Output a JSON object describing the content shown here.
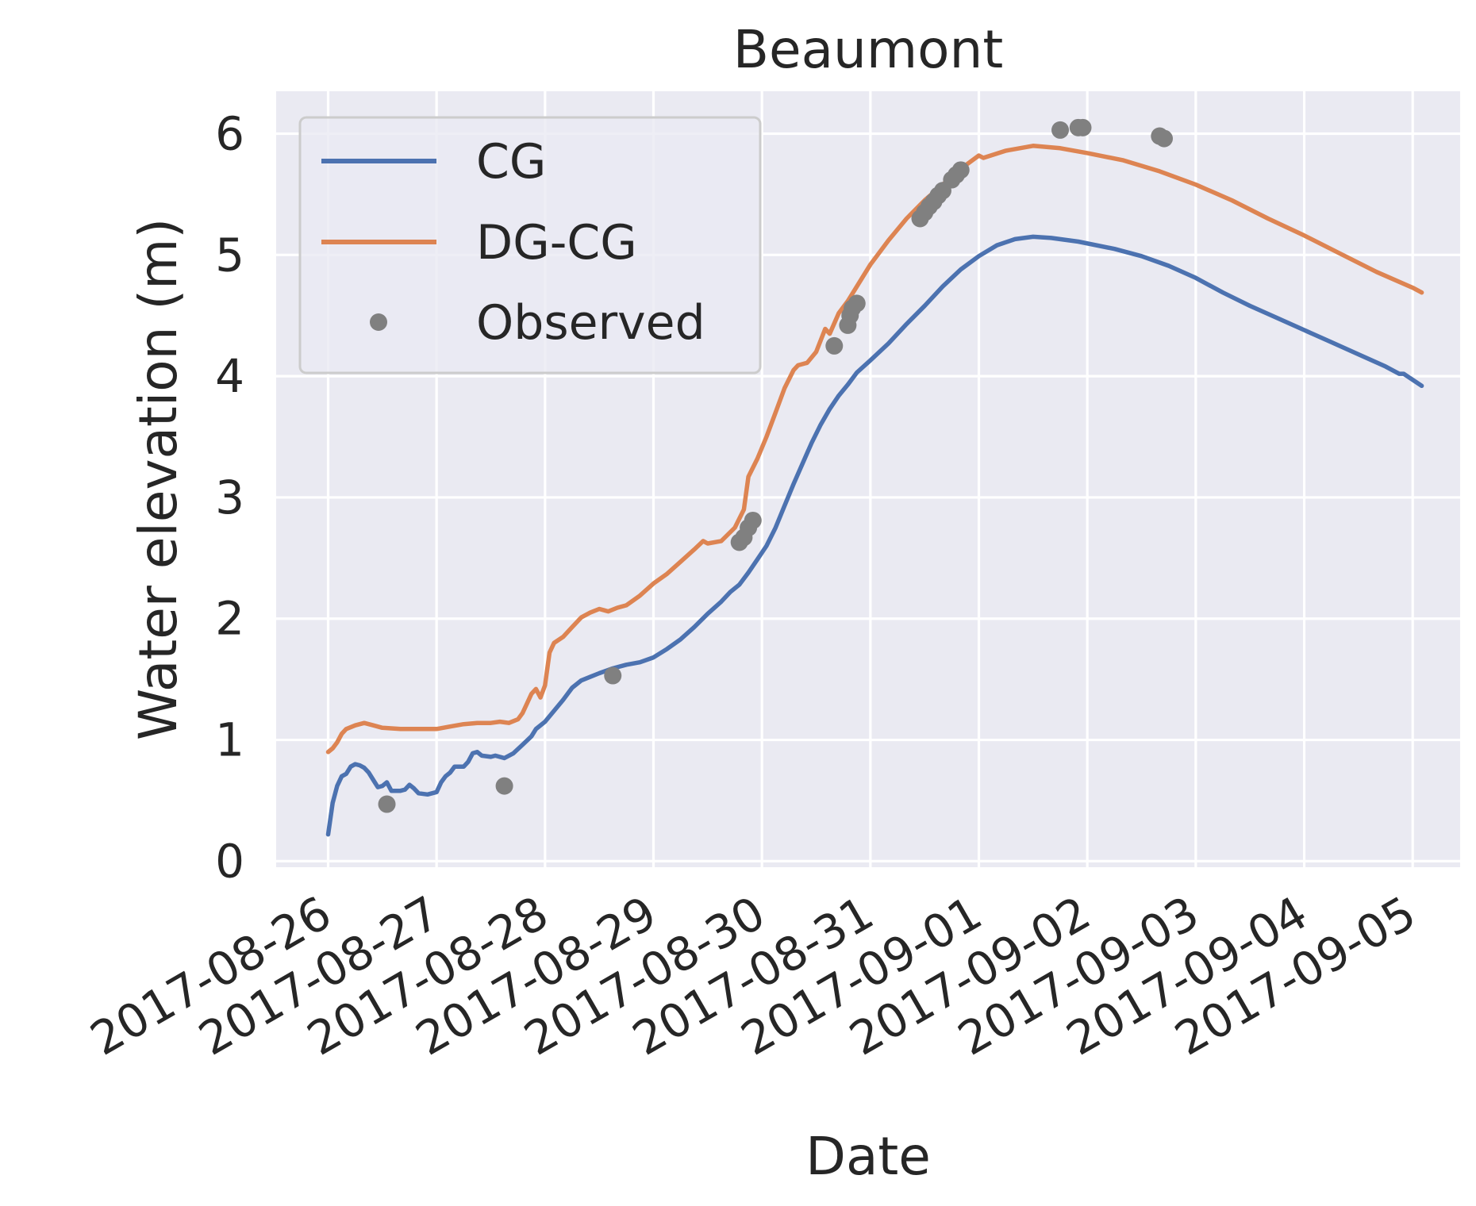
{
  "chart_data": {
    "type": "line",
    "title": "Beaumont",
    "xlabel": "Date",
    "ylabel": "Water elevation (m)",
    "x_ticks": [
      "2017-08-26",
      "2017-08-27",
      "2017-08-28",
      "2017-08-29",
      "2017-08-30",
      "2017-08-31",
      "2017-09-01",
      "2017-09-02",
      "2017-09-03",
      "2017-09-04",
      "2017-09-05"
    ],
    "y_ticks": [
      "0",
      "1",
      "2",
      "3",
      "4",
      "5",
      "6"
    ],
    "xlim": [
      "2017-08-25T12:30",
      "2017-09-05T10:30"
    ],
    "ylim": [
      -0.05,
      6.35
    ],
    "grid": true,
    "legend_position": "upper-left",
    "background_color": "#EAEAF2",
    "grid_color": "#FFFFFF",
    "series": [
      {
        "name": "CG",
        "kind": "line",
        "color": "#4C72B0",
        "points": [
          [
            "2017-08-26T00:00",
            0.22
          ],
          [
            "2017-08-26T01:00",
            0.48
          ],
          [
            "2017-08-26T02:00",
            0.62
          ],
          [
            "2017-08-26T03:00",
            0.7
          ],
          [
            "2017-08-26T04:00",
            0.72
          ],
          [
            "2017-08-26T05:00",
            0.78
          ],
          [
            "2017-08-26T06:00",
            0.8
          ],
          [
            "2017-08-26T07:00",
            0.79
          ],
          [
            "2017-08-26T08:00",
            0.77
          ],
          [
            "2017-08-26T09:00",
            0.73
          ],
          [
            "2017-08-26T10:00",
            0.67
          ],
          [
            "2017-08-26T11:00",
            0.61
          ],
          [
            "2017-08-26T12:00",
            0.62
          ],
          [
            "2017-08-26T13:00",
            0.65
          ],
          [
            "2017-08-26T14:00",
            0.58
          ],
          [
            "2017-08-26T16:00",
            0.58
          ],
          [
            "2017-08-26T17:00",
            0.59
          ],
          [
            "2017-08-26T18:00",
            0.63
          ],
          [
            "2017-08-26T19:00",
            0.6
          ],
          [
            "2017-08-26T20:00",
            0.56
          ],
          [
            "2017-08-26T22:00",
            0.55
          ],
          [
            "2017-08-27T00:00",
            0.57
          ],
          [
            "2017-08-27T01:00",
            0.65
          ],
          [
            "2017-08-27T02:00",
            0.7
          ],
          [
            "2017-08-27T03:00",
            0.73
          ],
          [
            "2017-08-27T04:00",
            0.78
          ],
          [
            "2017-08-27T06:00",
            0.78
          ],
          [
            "2017-08-27T07:00",
            0.82
          ],
          [
            "2017-08-27T08:00",
            0.89
          ],
          [
            "2017-08-27T09:00",
            0.9
          ],
          [
            "2017-08-27T10:00",
            0.87
          ],
          [
            "2017-08-27T12:00",
            0.86
          ],
          [
            "2017-08-27T13:00",
            0.87
          ],
          [
            "2017-08-27T15:00",
            0.85
          ],
          [
            "2017-08-27T17:00",
            0.89
          ],
          [
            "2017-08-27T19:00",
            0.96
          ],
          [
            "2017-08-27T21:00",
            1.03
          ],
          [
            "2017-08-27T22:00",
            1.09
          ],
          [
            "2017-08-28T00:00",
            1.15
          ],
          [
            "2017-08-28T02:00",
            1.24
          ],
          [
            "2017-08-28T04:00",
            1.33
          ],
          [
            "2017-08-28T06:00",
            1.43
          ],
          [
            "2017-08-28T08:00",
            1.49
          ],
          [
            "2017-08-28T10:00",
            1.52
          ],
          [
            "2017-08-28T12:00",
            1.55
          ],
          [
            "2017-08-28T15:00",
            1.59
          ],
          [
            "2017-08-28T18:00",
            1.62
          ],
          [
            "2017-08-28T21:00",
            1.64
          ],
          [
            "2017-08-29T00:00",
            1.68
          ],
          [
            "2017-08-29T03:00",
            1.75
          ],
          [
            "2017-08-29T06:00",
            1.83
          ],
          [
            "2017-08-29T09:00",
            1.93
          ],
          [
            "2017-08-29T12:00",
            2.04
          ],
          [
            "2017-08-29T15:00",
            2.14
          ],
          [
            "2017-08-29T17:00",
            2.22
          ],
          [
            "2017-08-29T19:00",
            2.28
          ],
          [
            "2017-08-29T21:00",
            2.38
          ],
          [
            "2017-08-29T23:00",
            2.49
          ],
          [
            "2017-08-30T01:00",
            2.6
          ],
          [
            "2017-08-30T03:00",
            2.75
          ],
          [
            "2017-08-30T05:00",
            2.93
          ],
          [
            "2017-08-30T07:00",
            3.11
          ],
          [
            "2017-08-30T09:00",
            3.28
          ],
          [
            "2017-08-30T11:00",
            3.45
          ],
          [
            "2017-08-30T13:00",
            3.6
          ],
          [
            "2017-08-30T15:00",
            3.73
          ],
          [
            "2017-08-30T17:00",
            3.84
          ],
          [
            "2017-08-30T19:00",
            3.93
          ],
          [
            "2017-08-30T21:00",
            4.03
          ],
          [
            "2017-08-31T00:00",
            4.13
          ],
          [
            "2017-08-31T04:00",
            4.27
          ],
          [
            "2017-08-31T08:00",
            4.43
          ],
          [
            "2017-08-31T12:00",
            4.58
          ],
          [
            "2017-08-31T16:00",
            4.74
          ],
          [
            "2017-08-31T20:00",
            4.88
          ],
          [
            "2017-09-01T00:00",
            4.99
          ],
          [
            "2017-09-01T04:00",
            5.08
          ],
          [
            "2017-09-01T08:00",
            5.13
          ],
          [
            "2017-09-01T12:00",
            5.15
          ],
          [
            "2017-09-01T16:00",
            5.14
          ],
          [
            "2017-09-01T22:00",
            5.11
          ],
          [
            "2017-09-02T06:00",
            5.05
          ],
          [
            "2017-09-02T12:00",
            4.99
          ],
          [
            "2017-09-02T18:00",
            4.91
          ],
          [
            "2017-09-03T00:00",
            4.81
          ],
          [
            "2017-09-03T06:00",
            4.69
          ],
          [
            "2017-09-03T12:00",
            4.58
          ],
          [
            "2017-09-03T18:00",
            4.48
          ],
          [
            "2017-09-04T00:00",
            4.38
          ],
          [
            "2017-09-04T06:00",
            4.28
          ],
          [
            "2017-09-04T12:00",
            4.18
          ],
          [
            "2017-09-04T18:00",
            4.08
          ],
          [
            "2017-09-04T21:00",
            4.02
          ],
          [
            "2017-09-04T22:00",
            4.02
          ],
          [
            "2017-09-05T00:00",
            3.97
          ],
          [
            "2017-09-05T02:00",
            3.92
          ]
        ]
      },
      {
        "name": "DG-CG",
        "kind": "line",
        "color": "#DD8452",
        "points": [
          [
            "2017-08-26T00:00",
            0.9
          ],
          [
            "2017-08-26T01:00",
            0.93
          ],
          [
            "2017-08-26T02:00",
            0.98
          ],
          [
            "2017-08-26T03:00",
            1.05
          ],
          [
            "2017-08-26T04:00",
            1.09
          ],
          [
            "2017-08-26T06:00",
            1.12
          ],
          [
            "2017-08-26T08:00",
            1.14
          ],
          [
            "2017-08-26T10:00",
            1.12
          ],
          [
            "2017-08-26T12:00",
            1.1
          ],
          [
            "2017-08-26T16:00",
            1.09
          ],
          [
            "2017-08-26T20:00",
            1.09
          ],
          [
            "2017-08-27T00:00",
            1.09
          ],
          [
            "2017-08-27T03:00",
            1.11
          ],
          [
            "2017-08-27T06:00",
            1.13
          ],
          [
            "2017-08-27T09:00",
            1.14
          ],
          [
            "2017-08-27T12:00",
            1.14
          ],
          [
            "2017-08-27T14:00",
            1.15
          ],
          [
            "2017-08-27T16:00",
            1.14
          ],
          [
            "2017-08-27T18:00",
            1.17
          ],
          [
            "2017-08-27T19:00",
            1.22
          ],
          [
            "2017-08-27T20:00",
            1.3
          ],
          [
            "2017-08-27T21:00",
            1.38
          ],
          [
            "2017-08-27T22:00",
            1.42
          ],
          [
            "2017-08-27T23:00",
            1.35
          ],
          [
            "2017-08-28T00:00",
            1.45
          ],
          [
            "2017-08-28T01:00",
            1.72
          ],
          [
            "2017-08-28T02:00",
            1.8
          ],
          [
            "2017-08-28T04:00",
            1.85
          ],
          [
            "2017-08-28T06:00",
            1.93
          ],
          [
            "2017-08-28T08:00",
            2.01
          ],
          [
            "2017-08-28T10:00",
            2.05
          ],
          [
            "2017-08-28T12:00",
            2.08
          ],
          [
            "2017-08-28T14:00",
            2.06
          ],
          [
            "2017-08-28T16:00",
            2.09
          ],
          [
            "2017-08-28T18:00",
            2.11
          ],
          [
            "2017-08-28T21:00",
            2.19
          ],
          [
            "2017-08-29T00:00",
            2.29
          ],
          [
            "2017-08-29T03:00",
            2.37
          ],
          [
            "2017-08-29T06:00",
            2.47
          ],
          [
            "2017-08-29T09:00",
            2.57
          ],
          [
            "2017-08-29T11:00",
            2.64
          ],
          [
            "2017-08-29T12:00",
            2.62
          ],
          [
            "2017-08-29T15:00",
            2.64
          ],
          [
            "2017-08-29T18:00",
            2.75
          ],
          [
            "2017-08-29T20:00",
            2.9
          ],
          [
            "2017-08-29T21:00",
            3.17
          ],
          [
            "2017-08-29T23:00",
            3.32
          ],
          [
            "2017-08-30T01:00",
            3.5
          ],
          [
            "2017-08-30T03:00",
            3.7
          ],
          [
            "2017-08-30T05:00",
            3.9
          ],
          [
            "2017-08-30T07:00",
            4.05
          ],
          [
            "2017-08-30T08:00",
            4.09
          ],
          [
            "2017-08-30T10:00",
            4.11
          ],
          [
            "2017-08-30T12:00",
            4.2
          ],
          [
            "2017-08-30T14:00",
            4.39
          ],
          [
            "2017-08-30T15:00",
            4.35
          ],
          [
            "2017-08-30T17:00",
            4.52
          ],
          [
            "2017-08-30T19:00",
            4.62
          ],
          [
            "2017-08-30T21:00",
            4.74
          ],
          [
            "2017-08-31T00:00",
            4.92
          ],
          [
            "2017-08-31T04:00",
            5.12
          ],
          [
            "2017-08-31T08:00",
            5.3
          ],
          [
            "2017-08-31T12:00",
            5.45
          ],
          [
            "2017-08-31T16:00",
            5.58
          ],
          [
            "2017-08-31T20:00",
            5.71
          ],
          [
            "2017-09-01T00:00",
            5.82
          ],
          [
            "2017-09-01T01:00",
            5.8
          ],
          [
            "2017-09-01T06:00",
            5.86
          ],
          [
            "2017-09-01T12:00",
            5.9
          ],
          [
            "2017-09-01T18:00",
            5.88
          ],
          [
            "2017-09-02T00:00",
            5.84
          ],
          [
            "2017-09-02T08:00",
            5.78
          ],
          [
            "2017-09-02T16:00",
            5.69
          ],
          [
            "2017-09-03T00:00",
            5.58
          ],
          [
            "2017-09-03T08:00",
            5.45
          ],
          [
            "2017-09-03T16:00",
            5.3
          ],
          [
            "2017-09-04T00:00",
            5.16
          ],
          [
            "2017-09-04T08:00",
            5.01
          ],
          [
            "2017-09-04T16:00",
            4.86
          ],
          [
            "2017-09-05T00:00",
            4.73
          ],
          [
            "2017-09-05T02:00",
            4.69
          ]
        ]
      },
      {
        "name": "Observed",
        "kind": "scatter",
        "color": "#808080",
        "points": [
          [
            "2017-08-26T13:00",
            0.47
          ],
          [
            "2017-08-27T15:00",
            0.62
          ],
          [
            "2017-08-28T15:00",
            1.53
          ],
          [
            "2017-08-29T19:00",
            2.63
          ],
          [
            "2017-08-29T20:00",
            2.67
          ],
          [
            "2017-08-29T21:00",
            2.75
          ],
          [
            "2017-08-29T22:00",
            2.81
          ],
          [
            "2017-08-30T16:00",
            4.25
          ],
          [
            "2017-08-30T19:00",
            4.42
          ],
          [
            "2017-08-30T19:30",
            4.5
          ],
          [
            "2017-08-30T20:00",
            4.56
          ],
          [
            "2017-08-30T21:00",
            4.6
          ],
          [
            "2017-08-31T11:00",
            5.3
          ],
          [
            "2017-08-31T12:00",
            5.35
          ],
          [
            "2017-08-31T13:00",
            5.4
          ],
          [
            "2017-08-31T14:00",
            5.44
          ],
          [
            "2017-08-31T15:00",
            5.49
          ],
          [
            "2017-08-31T16:00",
            5.53
          ],
          [
            "2017-08-31T18:00",
            5.62
          ],
          [
            "2017-08-31T19:00",
            5.66
          ],
          [
            "2017-08-31T20:00",
            5.7
          ],
          [
            "2017-09-01T18:00",
            6.03
          ],
          [
            "2017-09-01T22:00",
            6.05
          ],
          [
            "2017-09-01T23:00",
            6.05
          ],
          [
            "2017-09-02T16:00",
            5.98
          ],
          [
            "2017-09-02T17:00",
            5.96
          ]
        ]
      }
    ]
  }
}
